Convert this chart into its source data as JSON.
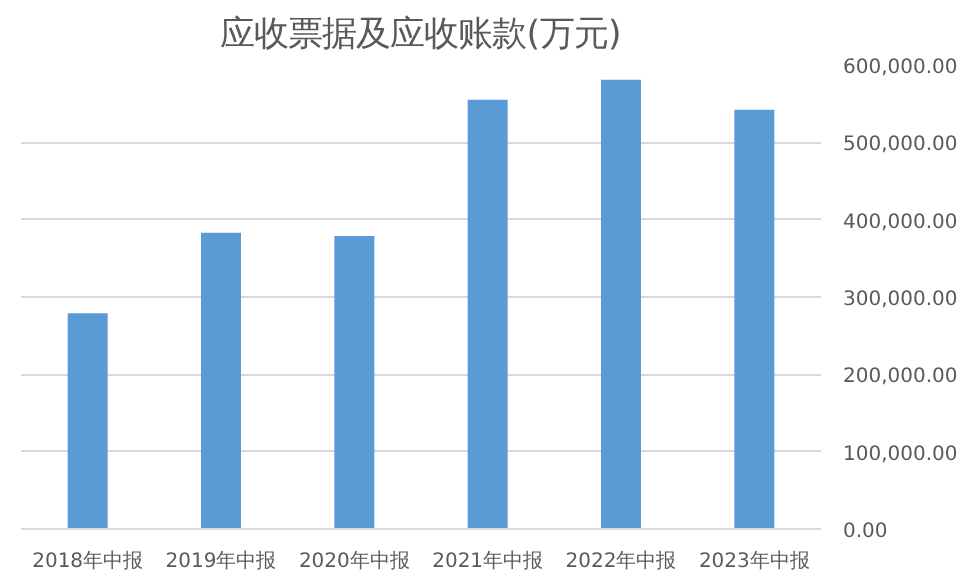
{
  "chart_data": {
    "type": "bar",
    "title": "应收票据及应收账款(万元)",
    "categories": [
      "2018年中报",
      "2019年中报",
      "2020年中报",
      "2021年中报",
      "2022年中报",
      "2023年中报"
    ],
    "values": [
      279000,
      383000,
      379000,
      555000,
      581000,
      542000
    ],
    "color": "#5b9bd5",
    "ylim": [
      0,
      600000
    ],
    "yticks": [
      {
        "value": 0,
        "label": "0.00"
      },
      {
        "value": 100000,
        "label": "100,000.00"
      },
      {
        "value": 200000,
        "label": "200,000.00"
      },
      {
        "value": 300000,
        "label": "300,000.00"
      },
      {
        "value": 400000,
        "label": "400,000.00"
      },
      {
        "value": 500000,
        "label": "500,000.00"
      },
      {
        "value": 600000,
        "label": "600,000.00"
      }
    ],
    "grid": "y"
  }
}
